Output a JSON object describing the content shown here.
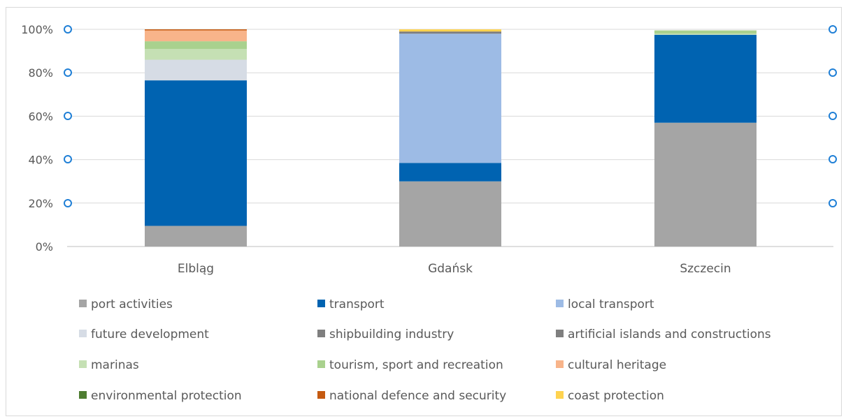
{
  "chart_data": {
    "type": "bar",
    "stacked": true,
    "categories": [
      "Elbląg",
      "Gdańsk",
      "Szczecin"
    ],
    "ylim": [
      0,
      100
    ],
    "y_ticks": [
      "0%",
      "20%",
      "40%",
      "60%",
      "80%",
      "100%"
    ],
    "grid": true,
    "legend_position": "bottom",
    "series": [
      {
        "name": "port activities",
        "color": "#a5a5a5",
        "values": [
          9.5,
          30,
          57
        ]
      },
      {
        "name": "transport",
        "color": "#0063b1",
        "values": [
          67,
          8.5,
          40.5
        ]
      },
      {
        "name": "local transport",
        "color": "#9dbbe5",
        "values": [
          0,
          59.5,
          0
        ]
      },
      {
        "name": "future development",
        "color": "#d6dce5",
        "values": [
          9.5,
          0,
          0
        ]
      },
      {
        "name": "shipbuilding industry",
        "color": "#7f7f7f",
        "values": [
          0,
          1,
          0
        ]
      },
      {
        "name": "artificial islands and constructions",
        "color": "#7f7f7f",
        "values": [
          0,
          0,
          0
        ]
      },
      {
        "name": "marinas",
        "color": "#c5e0b4",
        "values": [
          5,
          0,
          0.5
        ]
      },
      {
        "name": "tourism, sport and recreation",
        "color": "#a9d18e",
        "values": [
          3.5,
          0,
          1.5
        ]
      },
      {
        "name": "cultural heritage",
        "color": "#f8b48a",
        "values": [
          5,
          0,
          0
        ]
      },
      {
        "name": "environmental protection",
        "color": "#4e7d31",
        "values": [
          0,
          0,
          0
        ]
      },
      {
        "name": "national defence and security",
        "color": "#c55a11",
        "values": [
          0.5,
          0,
          0
        ]
      },
      {
        "name": "coast protection",
        "color": "#ffd34f",
        "values": [
          0,
          1,
          0
        ]
      }
    ]
  }
}
